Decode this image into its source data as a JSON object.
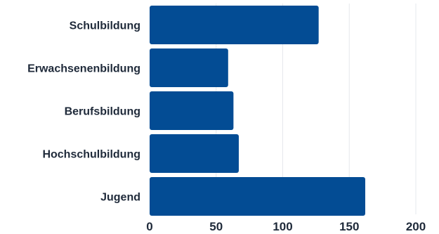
{
  "chart_data": {
    "type": "bar",
    "orientation": "horizontal",
    "categories": [
      "Schulbildung",
      "Erwachsenenbildung",
      "Berufsbildung",
      "Hochschulbildung",
      "Jugend"
    ],
    "values": [
      127,
      59,
      63,
      67,
      162
    ],
    "x_ticks": [
      0,
      50,
      100,
      150,
      200
    ],
    "xlim": [
      0,
      200
    ],
    "grid": true,
    "legend": "none",
    "bar_color": "#034c94"
  }
}
